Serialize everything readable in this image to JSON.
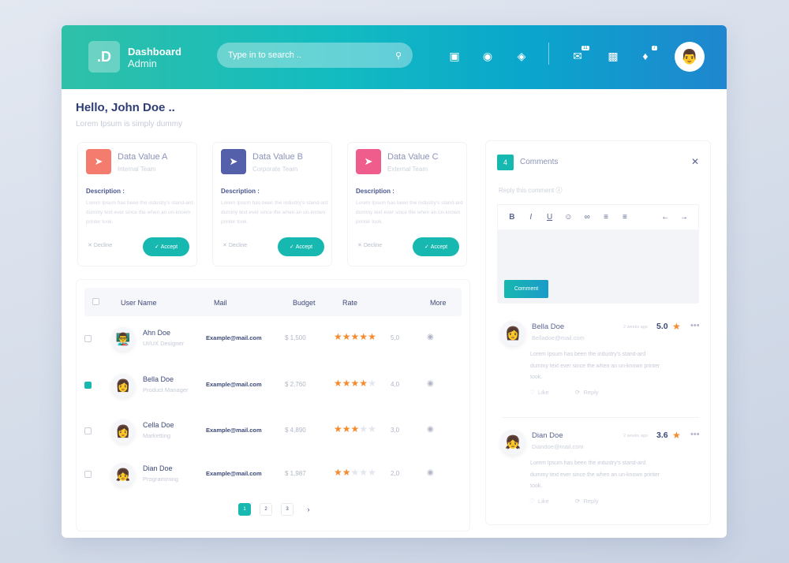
{
  "header": {
    "logo": ".D",
    "brand_title": "Dashboard",
    "brand_sub": "Admin",
    "search_placeholder": "Type in to search ..",
    "icons": [
      "window-icon",
      "coins-icon",
      "layers-icon",
      "mail-icon",
      "contacts-icon",
      "bell-icon"
    ],
    "mail_badge": "11",
    "bell_badge": "7"
  },
  "greeting": {
    "title": "Hello, John Doe ..",
    "subtitle": "Lorem Ipsum is simply dummy"
  },
  "cards": [
    {
      "title": "Data Value A",
      "team": "Internal Team",
      "color": "#f37c6e",
      "desc_label": "Description :",
      "desc": "Lorem Ipsum has been the industry's stand-ard dummy text ever since the when an un-known printer took.",
      "decline": "Decline",
      "accept": "Accept"
    },
    {
      "title": "Data Value B",
      "team": "Corporate Team",
      "color": "#5560aa",
      "desc_label": "Description :",
      "desc": "Lorem Ipsum has been the industry's stand-ard dummy text ever since the when an un-known printer took.",
      "decline": "Decline",
      "accept": "Accept"
    },
    {
      "title": "Data Value C",
      "team": "External Team",
      "color": "#ef5d8c",
      "desc_label": "Description :",
      "desc": "Lorem Ipsum has been the industry's stand-ard dummy text ever since the when an un-known printer took.",
      "decline": "Decline",
      "accept": "Accept"
    }
  ],
  "table": {
    "columns": [
      "User Name",
      "Mail",
      "Budget",
      "Rate",
      "More"
    ],
    "rows": [
      {
        "name": "Ahn Doe",
        "role": "UI/UX Designer",
        "mail": "Example@mail.com",
        "budget": "$ 1,500",
        "stars": 5,
        "rate": "5,0",
        "checked": false
      },
      {
        "name": "Bella Doe",
        "role": "Product Manager",
        "mail": "Example@mail.com",
        "budget": "$ 2,760",
        "stars": 4,
        "rate": "4,0",
        "checked": true
      },
      {
        "name": "Cella Doe",
        "role": "Marketting",
        "mail": "Example@mail.com",
        "budget": "$ 4,890",
        "stars": 3,
        "rate": "3,0",
        "checked": false
      },
      {
        "name": "Dian Doe",
        "role": "Programming",
        "mail": "Example@mail.com",
        "budget": "$ 1,987",
        "stars": 2,
        "rate": "2,0",
        "checked": false
      }
    ],
    "pages": [
      "1",
      "2",
      "3"
    ],
    "current_page": "1"
  },
  "comments": {
    "count": "4",
    "title": "Comments",
    "reply_placeholder": "Reply this comment",
    "button": "Comment",
    "items": [
      {
        "name": "Bella Doe",
        "email": "Belladoe@mail.com",
        "time": "2 weeks ago",
        "rating": "5.0",
        "text": "Lorem Ipsum has been the industry's stand-ard dummy text ever since the when an un-known printer took.",
        "like": "Like",
        "reply": "Reply"
      },
      {
        "name": "Dian Doe",
        "email": "Diandoe@mail.com",
        "time": "2 weeks ago",
        "rating": "3.6",
        "text": "Lorem Ipsum has been the industry's stand-ard dummy text ever since the when an un-known printer took.",
        "like": "Like",
        "reply": "Reply"
      }
    ]
  },
  "colors": {
    "accent": "#17b8b0",
    "star": "#f58b2e"
  }
}
